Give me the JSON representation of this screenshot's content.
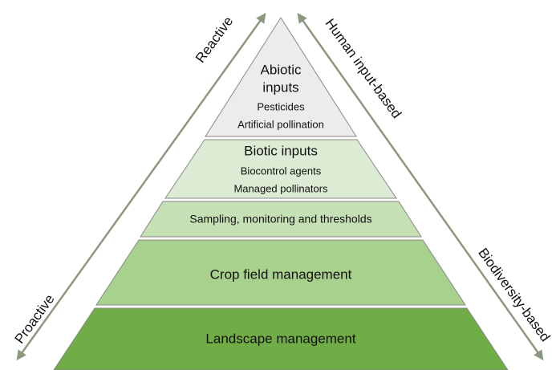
{
  "pyramid": {
    "layers": [
      {
        "title_lines": [
          "Abiotic",
          "inputs"
        ],
        "items": [
          "Pesticides",
          "Artificial pollination"
        ]
      },
      {
        "title": "Biotic inputs",
        "items": [
          "Biocontrol agents",
          "Managed pollinators"
        ]
      },
      {
        "title": "Sampling, monitoring and thresholds"
      },
      {
        "title": "Crop field management"
      },
      {
        "title": "Landscape management"
      }
    ],
    "left_top": "Reactive",
    "left_bottom": "Proactive",
    "right_top": "Human input-based",
    "right_bottom": "Biodiversity-based"
  }
}
